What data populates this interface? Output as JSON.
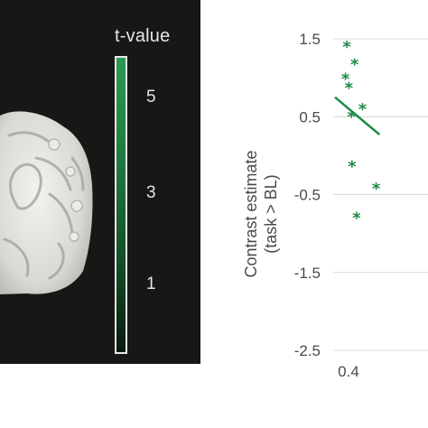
{
  "colorbar": {
    "title": "t-value",
    "ticks": [
      "5",
      "3",
      "1"
    ],
    "color_high": "#2b9a52",
    "color_low": "#081a0d"
  },
  "chart_data": {
    "type": "scatter",
    "ylabel_line1": "Contrast estimate",
    "ylabel_line2": "(task > BL)",
    "y_ticks": [
      "1.5",
      "0.5",
      "-0.5",
      "-1.5",
      "-2.5"
    ],
    "x_ticks": [
      "0.4"
    ],
    "ylim": [
      -2.5,
      1.9
    ],
    "xlim": [
      0.38,
      0.75
    ],
    "grid": "horizontal",
    "marker_color": "#1f8a45",
    "points": [
      {
        "x": 0.425,
        "y": 1.42
      },
      {
        "x": 0.455,
        "y": 1.19
      },
      {
        "x": 0.42,
        "y": 1.01
      },
      {
        "x": 0.433,
        "y": 0.89
      },
      {
        "x": 0.443,
        "y": 0.52
      },
      {
        "x": 0.485,
        "y": 0.62
      },
      {
        "x": 0.445,
        "y": -0.12
      },
      {
        "x": 0.462,
        "y": -0.78
      },
      {
        "x": 0.537,
        "y": -0.4
      }
    ],
    "trend_line": {
      "x": [
        0.38,
        0.55
      ],
      "y": [
        0.75,
        0.27
      ]
    }
  }
}
